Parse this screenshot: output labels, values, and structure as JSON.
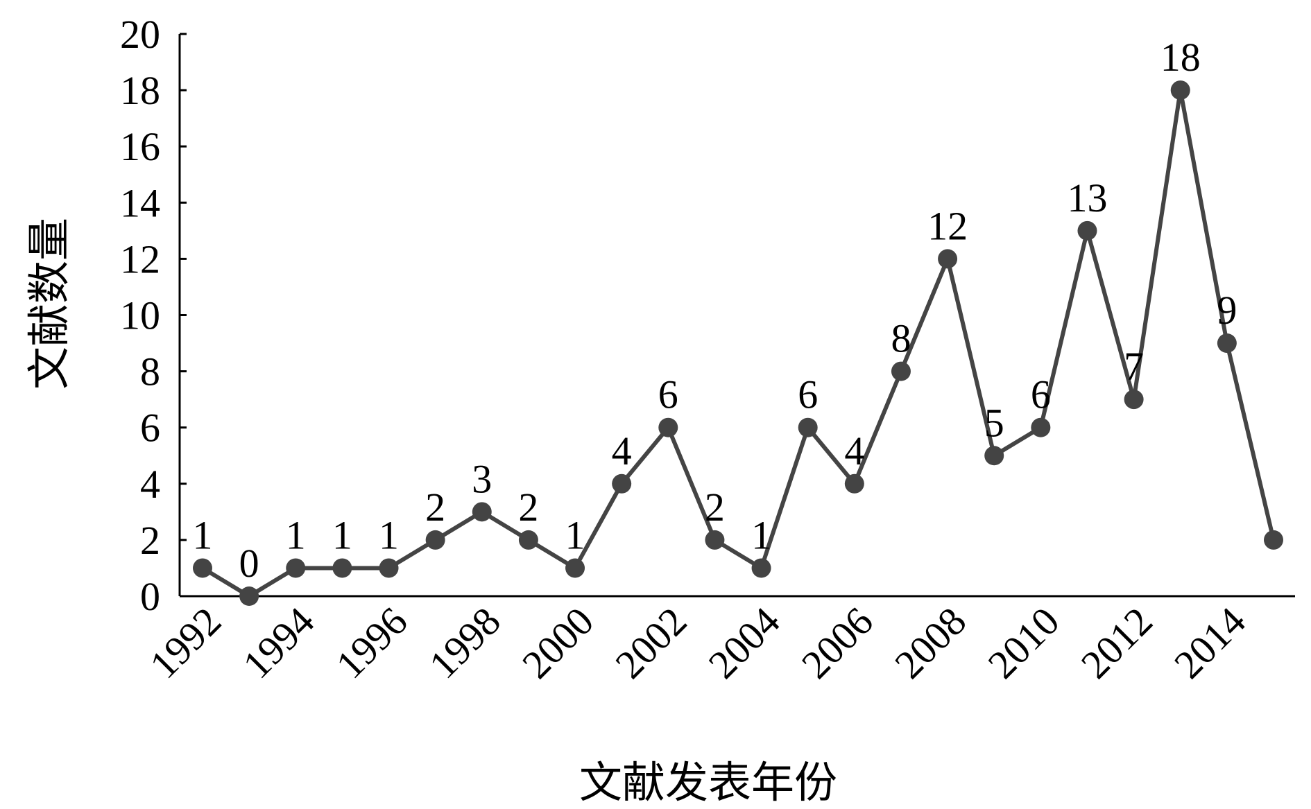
{
  "chart_data": {
    "type": "line",
    "x_label": "文献发表年份",
    "y_label": "文献数量",
    "categories": [
      "1992",
      null,
      "1994",
      null,
      "1996",
      null,
      "1998",
      null,
      "2000",
      null,
      "2002",
      null,
      "2004",
      null,
      "2006",
      null,
      "2008",
      null,
      "2010",
      null,
      "2012",
      null,
      "2014",
      null
    ],
    "series": [
      {
        "name": "文献数量",
        "color": "#444444",
        "values": [
          1,
          0,
          1,
          1,
          1,
          2,
          3,
          2,
          1,
          4,
          6,
          2,
          1,
          6,
          4,
          8,
          12,
          5,
          6,
          13,
          7,
          18,
          9,
          2
        ],
        "value_labels": [
          "1",
          "0",
          "1",
          "1",
          "1",
          "2",
          "3",
          "2",
          "1",
          "4",
          "6",
          "2",
          "1",
          "6",
          "4",
          "8",
          "12",
          "5",
          "6",
          "13",
          "7",
          "18",
          "9",
          null
        ]
      }
    ],
    "ylim": [
      0,
      20
    ],
    "yticks": [
      0,
      2,
      4,
      6,
      8,
      10,
      12,
      14,
      16,
      18,
      20
    ],
    "grid": false
  }
}
